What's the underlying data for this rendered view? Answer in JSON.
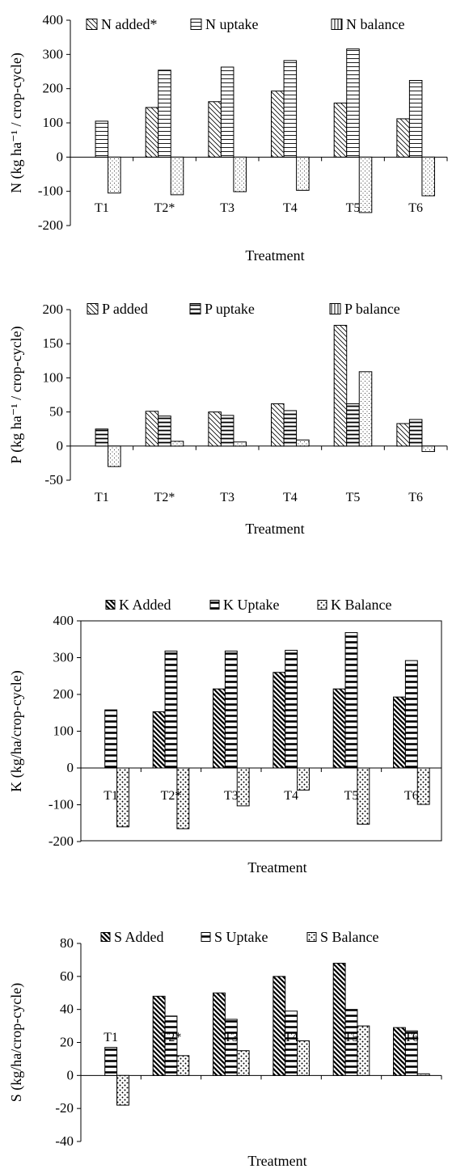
{
  "chart_data": [
    {
      "type": "bar",
      "title": "",
      "xlabel": "Treatment",
      "ylabel": "N (kg ha⁻¹ / crop-cycle)",
      "ylim": [
        -200,
        400
      ],
      "yticks": [
        -200,
        -100,
        0,
        100,
        200,
        300,
        400
      ],
      "categories": [
        "T1",
        "T2*",
        "T3",
        "T4",
        "T5",
        "T6"
      ],
      "legend_placement": "top",
      "framed": false,
      "series": [
        {
          "name": "N added*",
          "pattern": "diag-thin",
          "values": [
            0,
            145,
            162,
            193,
            158,
            112
          ]
        },
        {
          "name": "N uptake",
          "pattern": "horiz-thin",
          "values": [
            105,
            254,
            263,
            282,
            316,
            224
          ]
        },
        {
          "name": "N balance",
          "pattern": "dots",
          "values": [
            -105,
            -110,
            -101,
            -97,
            -162,
            -113
          ]
        }
      ],
      "legend_swatch_patterns": [
        "diag-thin",
        "horiz-thin",
        "vert"
      ]
    },
    {
      "type": "bar",
      "title": "",
      "xlabel": "Treatment",
      "ylabel": "P (kg ha⁻¹ / crop-cycle)",
      "ylim": [
        -50,
        200
      ],
      "yticks": [
        -50,
        0,
        50,
        100,
        150,
        200
      ],
      "categories": [
        "T1",
        "T2*",
        "T3",
        "T4",
        "T5",
        "T6"
      ],
      "legend_placement": "top",
      "framed": false,
      "series": [
        {
          "name": "P added",
          "pattern": "diag-thin",
          "values": [
            0,
            51,
            50,
            62,
            177,
            33
          ]
        },
        {
          "name": "P uptake",
          "pattern": "horiz-thick",
          "values": [
            25,
            44,
            45,
            52,
            62,
            39
          ]
        },
        {
          "name": "P balance",
          "pattern": "dots",
          "values": [
            -30,
            7,
            6,
            9,
            109,
            -8
          ]
        }
      ],
      "legend_swatch_patterns": [
        "diag-thin",
        "horiz-thick",
        "vert"
      ]
    },
    {
      "type": "bar",
      "title": "",
      "xlabel": "Treatment",
      "ylabel": "K (kg/ha/crop-cycle)",
      "ylim": [
        -200,
        400
      ],
      "yticks": [
        -200,
        -100,
        0,
        100,
        200,
        300,
        400
      ],
      "categories": [
        "T1",
        "T2*",
        "T3",
        "T4",
        "T5",
        "T6"
      ],
      "legend_placement": "top",
      "framed": true,
      "series": [
        {
          "name": "K Added",
          "pattern": "diag-thick",
          "values": [
            0,
            153,
            215,
            260,
            215,
            193
          ]
        },
        {
          "name": "K Uptake",
          "pattern": "horiz-rich",
          "values": [
            158,
            318,
            318,
            320,
            368,
            292
          ]
        },
        {
          "name": "K Balance",
          "pattern": "dots-bold",
          "values": [
            -160,
            -165,
            -103,
            -60,
            -153,
            -99
          ]
        }
      ],
      "legend_swatch_patterns": [
        "diag-thick",
        "horiz-rich",
        "dots-bold"
      ]
    },
    {
      "type": "bar",
      "title": "",
      "xlabel": "Treatment",
      "ylabel": "S (kg/ha/crop-cycle)",
      "ylim": [
        -40,
        80
      ],
      "yticks": [
        -40,
        -20,
        0,
        20,
        40,
        60,
        80
      ],
      "categories": [
        "T1",
        "T2*",
        "T3",
        "T4",
        "T5",
        "T6"
      ],
      "legend_placement": "top",
      "framed": false,
      "series": [
        {
          "name": "S Added",
          "pattern": "diag-thick",
          "values": [
            0,
            48,
            50,
            60,
            68,
            29
          ]
        },
        {
          "name": "S Uptake",
          "pattern": "horiz-rich",
          "values": [
            17,
            36,
            34,
            39,
            40,
            27
          ]
        },
        {
          "name": "S Balance",
          "pattern": "dots-bold",
          "values": [
            -18,
            12,
            15,
            21,
            30,
            1
          ]
        }
      ],
      "legend_swatch_patterns": [
        "diag-thick",
        "horiz-rich",
        "dots-bold"
      ]
    }
  ]
}
